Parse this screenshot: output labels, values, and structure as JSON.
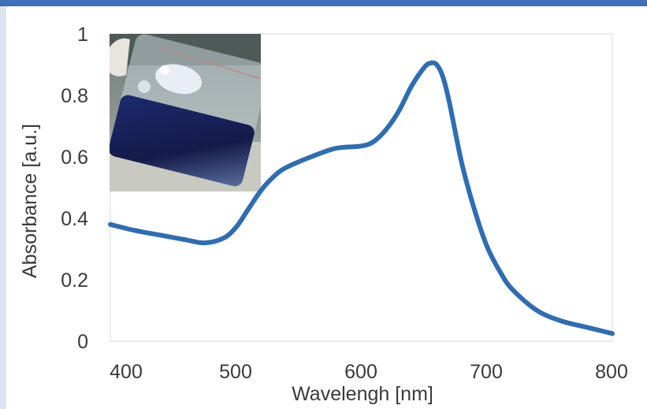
{
  "chart_data": {
    "type": "line",
    "xlabel": "Wavelengh [nm]",
    "ylabel": "Absorbance [a.u.]",
    "xlim": [
      400,
      800
    ],
    "ylim": [
      0,
      1
    ],
    "x_ticks": [
      "400",
      "500",
      "600",
      "700",
      "800"
    ],
    "y_ticks": [
      "0",
      "0.2",
      "0.4",
      "0.6",
      "0.8",
      "1"
    ],
    "grid": false,
    "legend": "none",
    "series": [
      {
        "color": "#2e6db4",
        "x": [
          400,
          420,
          440,
          460,
          475,
          490,
          500,
          510,
          520,
          530,
          540,
          560,
          580,
          600,
          610,
          620,
          630,
          640,
          650,
          655,
          660,
          665,
          670,
          680,
          690,
          700,
          710,
          720,
          740,
          760,
          780,
          800
        ],
        "y": [
          0.38,
          0.36,
          0.345,
          0.33,
          0.32,
          0.335,
          0.37,
          0.43,
          0.49,
          0.535,
          0.565,
          0.6,
          0.628,
          0.635,
          0.65,
          0.69,
          0.75,
          0.83,
          0.89,
          0.905,
          0.9,
          0.86,
          0.78,
          0.58,
          0.43,
          0.31,
          0.23,
          0.17,
          0.1,
          0.065,
          0.045,
          0.025
        ]
      }
    ],
    "inset_photo": "photo of a glass vial containing a dark blue liquid, inset in the top-left of the plot"
  }
}
